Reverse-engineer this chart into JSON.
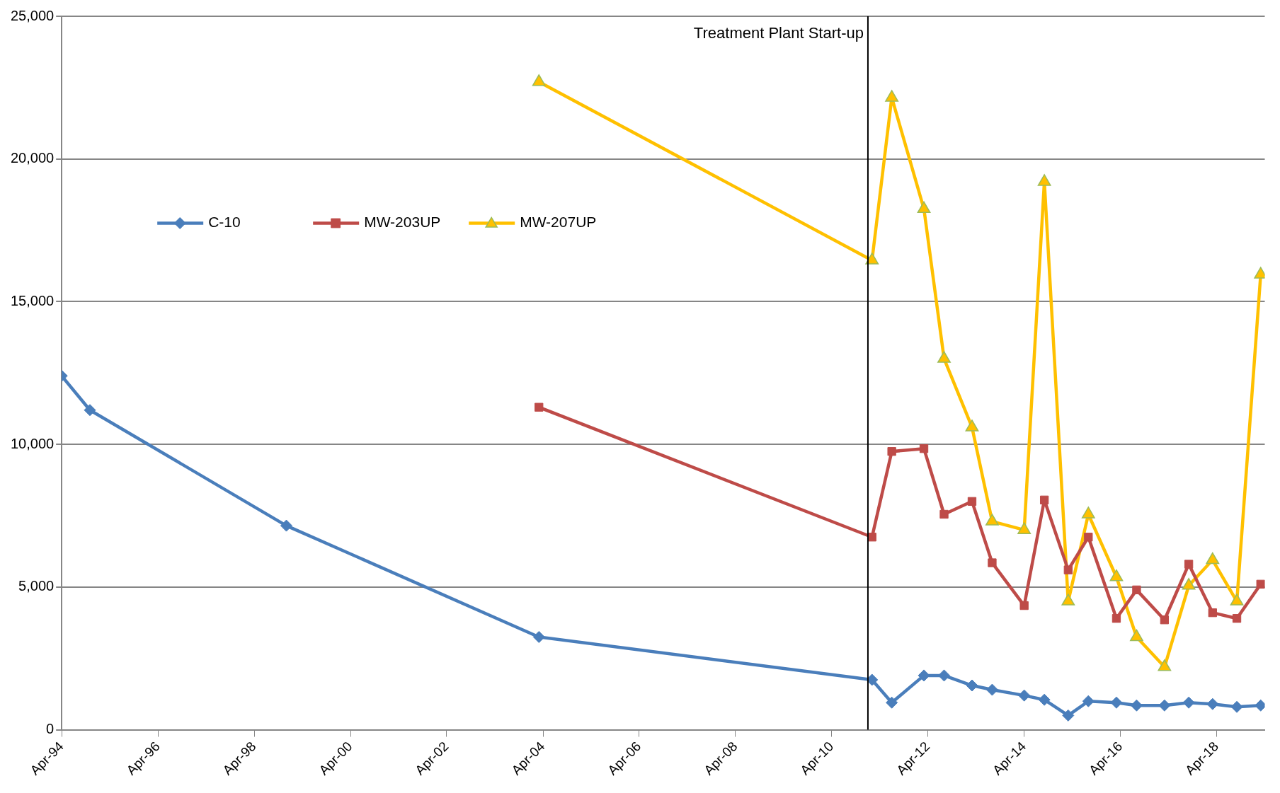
{
  "chart_data": {
    "type": "line",
    "xlim": [
      "1994-04",
      "2019-04"
    ],
    "xticks": [
      {
        "value": "1994-04",
        "label": "Apr-94"
      },
      {
        "value": "1996-04",
        "label": "Apr-96"
      },
      {
        "value": "1998-04",
        "label": "Apr-98"
      },
      {
        "value": "2000-04",
        "label": "Apr-00"
      },
      {
        "value": "2002-04",
        "label": "Apr-02"
      },
      {
        "value": "2004-04",
        "label": "Apr-04"
      },
      {
        "value": "2006-04",
        "label": "Apr-06"
      },
      {
        "value": "2008-04",
        "label": "Apr-08"
      },
      {
        "value": "2010-04",
        "label": "Apr-10"
      },
      {
        "value": "2012-04",
        "label": "Apr-12"
      },
      {
        "value": "2014-04",
        "label": "Apr-14"
      },
      {
        "value": "2016-04",
        "label": "Apr-16"
      },
      {
        "value": "2018-04",
        "label": "Apr-18"
      }
    ],
    "ylim": [
      0,
      25000
    ],
    "yticks": [
      {
        "value": 0,
        "label": "0"
      },
      {
        "value": 5000,
        "label": "5,000"
      },
      {
        "value": 10000,
        "label": "10,000"
      },
      {
        "value": 15000,
        "label": "15,000"
      },
      {
        "value": 20000,
        "label": "20,000"
      },
      {
        "value": 25000,
        "label": "25,000"
      }
    ],
    "grid": "y",
    "legend": "left",
    "line_style": "solid",
    "ref_lines": [
      {
        "axis": "x",
        "value": "2011-01",
        "label": "Treatment Plant Start-up",
        "color": "#000000"
      }
    ],
    "series": [
      {
        "name": "C-10",
        "color": "#4a7ebb",
        "marker": "diamond",
        "x": [
          "1994-04",
          "1994-11",
          "1998-12",
          "2004-03",
          "2011-02",
          "2011-07",
          "2012-03",
          "2012-08",
          "2013-03",
          "2013-08",
          "2014-04",
          "2014-09",
          "2015-03",
          "2015-08",
          "2016-03",
          "2016-08",
          "2017-03",
          "2017-09",
          "2018-03",
          "2018-09",
          "2019-03"
        ],
        "values": [
          12400,
          11200,
          7150,
          3250,
          1750,
          950,
          1900,
          1900,
          1550,
          1400,
          1200,
          1050,
          500,
          1000,
          950,
          850,
          850,
          950,
          900,
          800,
          850
        ]
      },
      {
        "name": "MW-203UP",
        "color": "#be4b48",
        "marker": "square",
        "x": [
          "2004-03",
          "2011-02",
          "2011-07",
          "2012-03",
          "2012-08",
          "2013-03",
          "2013-08",
          "2014-04",
          "2014-09",
          "2015-03",
          "2015-08",
          "2016-03",
          "2016-08",
          "2017-03",
          "2017-09",
          "2018-03",
          "2018-09",
          "2019-03"
        ],
        "values": [
          11300,
          6750,
          9750,
          9850,
          7550,
          8000,
          5850,
          4350,
          8050,
          5600,
          6750,
          3900,
          4900,
          3850,
          5800,
          4100,
          3900,
          5100
        ]
      },
      {
        "name": "MW-207UP",
        "color": "#ffc000",
        "marker": "triangle",
        "x": [
          "2004-03",
          "2011-02",
          "2011-07",
          "2012-03",
          "2012-08",
          "2013-03",
          "2013-08",
          "2014-04",
          "2014-09",
          "2015-03",
          "2015-08",
          "2016-03",
          "2016-08",
          "2017-03",
          "2017-09",
          "2018-03",
          "2018-09",
          "2019-03"
        ],
        "values": [
          22700,
          16450,
          22150,
          18250,
          13000,
          10600,
          7300,
          7000,
          19200,
          4500,
          7550,
          5350,
          3250,
          2200,
          5050,
          5950,
          4500,
          15950
        ]
      }
    ]
  }
}
